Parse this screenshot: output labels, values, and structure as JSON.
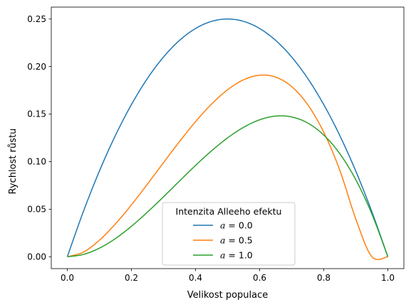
{
  "chart_data": {
    "type": "line",
    "title": "",
    "xlabel": "Velikost populace",
    "ylabel": "Rychlost růstu",
    "xlim": [
      -0.05,
      1.05
    ],
    "ylim": [
      -0.0125,
      0.2625
    ],
    "x_ticks": [
      0.0,
      0.2,
      0.4,
      0.6,
      0.8,
      1.0
    ],
    "x_tick_labels": [
      "0.0",
      "0.2",
      "0.4",
      "0.6",
      "0.8",
      "1.0"
    ],
    "y_ticks": [
      0.0,
      0.05,
      0.1,
      0.15,
      0.2,
      0.25
    ],
    "y_tick_labels": [
      "0.00",
      "0.05",
      "0.10",
      "0.15",
      "0.20",
      "0.25"
    ],
    "grid": false,
    "legend": {
      "title": "Intenzita Alleeho efektu",
      "placement": "bottom-center"
    },
    "x": [
      0.0,
      0.05,
      0.1,
      0.15,
      0.2,
      0.25,
      0.3,
      0.35,
      0.4,
      0.45,
      0.5,
      0.55,
      0.6,
      0.65,
      0.7,
      0.75,
      0.8,
      0.85,
      0.9,
      0.95,
      1.0
    ],
    "series": [
      {
        "name": "a = 0.0",
        "legend_var": "a",
        "legend_value": "0.0",
        "color": "#1f77b4",
        "values": [
          0.0,
          0.0475,
          0.09,
          0.1275,
          0.16,
          0.1875,
          0.21,
          0.2275,
          0.24,
          0.2475,
          0.25,
          0.2475,
          0.24,
          0.2275,
          0.21,
          0.1875,
          0.16,
          0.1275,
          0.09,
          0.0475,
          0.0
        ]
      },
      {
        "name": "a = 0.5",
        "legend_var": "a",
        "legend_value": "0.5",
        "color": "#ff7f0e",
        "values": [
          0.0,
          0.0048,
          0.0173,
          0.0345,
          0.0545,
          0.0764,
          0.0989,
          0.1211,
          0.142,
          0.1605,
          0.1756,
          0.1861,
          0.1909,
          0.1889,
          0.1789,
          0.1599,
          0.1309,
          0.0911,
          0.0397,
          -0.0,
          0.0
        ]
      },
      {
        "name": "a = 1.0",
        "legend_var": "a",
        "legend_value": "1.0",
        "color": "#2ca02c",
        "values": [
          0.0,
          0.0024,
          0.009,
          0.0191,
          0.032,
          0.0469,
          0.063,
          0.0796,
          0.096,
          0.1114,
          0.125,
          0.1361,
          0.144,
          0.1479,
          0.147,
          0.1406,
          0.128,
          0.1084,
          0.081,
          0.0451,
          0.0
        ]
      }
    ]
  }
}
